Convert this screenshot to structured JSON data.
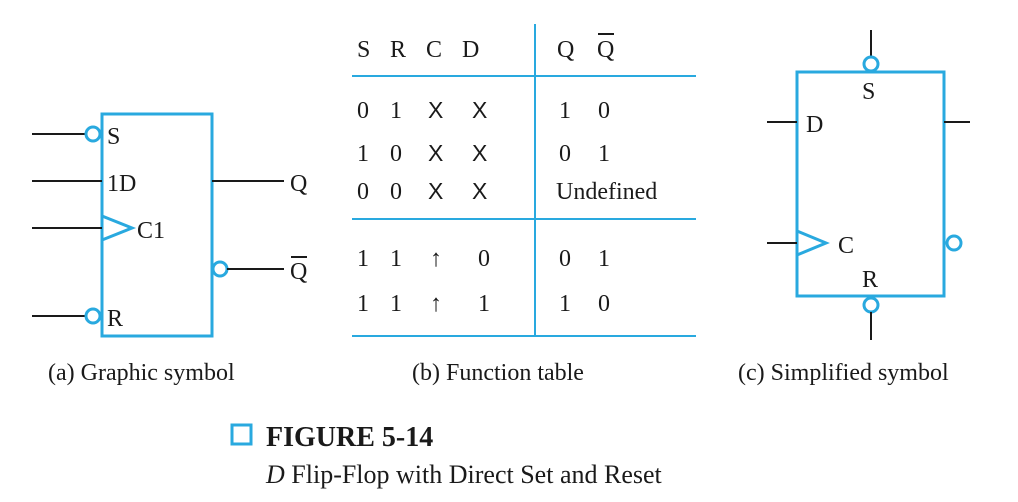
{
  "graphic_symbol": {
    "inputs": {
      "s": "S",
      "d": "1D",
      "c": "C1",
      "r": "R"
    },
    "outputs": {
      "q": "Q",
      "qbar": "Q"
    },
    "caption": "(a) Graphic symbol"
  },
  "function_table": {
    "headers": [
      "S",
      "R",
      "C",
      "D",
      "Q",
      "Q"
    ],
    "groups": [
      [
        [
          "0",
          "1",
          "X",
          "X",
          "1",
          "0"
        ],
        [
          "1",
          "0",
          "X",
          "X",
          "0",
          "1"
        ],
        [
          "0",
          "0",
          "X",
          "X",
          "Undefined"
        ]
      ],
      [
        [
          "1",
          "1",
          "↑",
          "0",
          "0",
          "1"
        ],
        [
          "1",
          "1",
          "↑",
          "1",
          "1",
          "0"
        ]
      ]
    ],
    "caption": "(b) Function table"
  },
  "simplified_symbol": {
    "labels": {
      "s": "S",
      "d": "D",
      "c": "C",
      "r": "R"
    },
    "caption": "(c) Simplified symbol"
  },
  "figure": {
    "label": "FIGURE 5-14",
    "title_italic": "D",
    "title_rest": " Flip-Flop with Direct Set and Reset"
  }
}
